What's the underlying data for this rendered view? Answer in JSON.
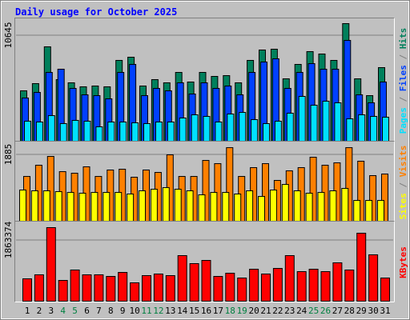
{
  "title": "Daily usage for October 2025",
  "categories": [
    "1",
    "2",
    "3",
    "4",
    "5",
    "6",
    "7",
    "8",
    "9",
    "10",
    "11",
    "12",
    "13",
    "14",
    "15",
    "16",
    "17",
    "18",
    "19",
    "20",
    "21",
    "22",
    "23",
    "24",
    "25",
    "26",
    "27",
    "28",
    "29",
    "30",
    "31"
  ],
  "weekends": [
    "4",
    "5",
    "11",
    "12",
    "18",
    "19",
    "25",
    "26"
  ],
  "weekend_color": "#008040",
  "label_color": "#000000",
  "legend_separator": " / ",
  "chart_data": [
    {
      "type": "bar",
      "ylim": [
        0,
        12096
      ],
      "yticks": [
        10645
      ],
      "grid": true,
      "series": [
        {
          "name": "Hits",
          "color": "#00805c",
          "values": [
            5080,
            5806,
            9516,
            6209,
            5887,
            5484,
            5564,
            5484,
            8145,
            8467,
            5564,
            6209,
            5887,
            6935,
            5967,
            6935,
            6532,
            6612,
            5887,
            8145,
            9193,
            9274,
            6290,
            7741,
            9032,
            8790,
            8145,
            11854,
            6290,
            4596,
            7419
          ]
        },
        {
          "name": "Files",
          "color": "#0040ff",
          "values": [
            4355,
            4919,
            6935,
            7258,
            5322,
            4677,
            4596,
            4274,
            6935,
            7741,
            4596,
            5322,
            5080,
            5887,
            4758,
            5887,
            5322,
            5564,
            4677,
            6935,
            7983,
            8306,
            5322,
            6935,
            7822,
            7258,
            7258,
            10161,
            4677,
            3871,
            5967
          ]
        },
        {
          "name": "Pages",
          "color": "#00e0ff",
          "values": [
            2016,
            1935,
            2580,
            1774,
            2097,
            2016,
            1452,
            1935,
            1935,
            1855,
            1774,
            1935,
            1935,
            2339,
            2661,
            2500,
            1935,
            2742,
            2903,
            2177,
            1774,
            2016,
            2822,
            4516,
            3629,
            4032,
            3871,
            2258,
            2661,
            2500,
            2419
          ]
        }
      ]
    },
    {
      "type": "bar",
      "ylim": [
        0,
        2180
      ],
      "yticks": [
        1885
      ],
      "grid": true,
      "series": [
        {
          "name": "Visits",
          "color": "#ff8000",
          "values": [
            1271,
            1589,
            1839,
            1407,
            1362,
            1544,
            1271,
            1453,
            1476,
            1249,
            1453,
            1385,
            1884,
            1271,
            1271,
            1725,
            1634,
            2088,
            1271,
            1521,
            1634,
            1158,
            1430,
            1521,
            1816,
            1589,
            1657,
            2088,
            1703,
            1294,
            1339
          ]
        },
        {
          "name": "Sites",
          "color": "#ffff00",
          "values": [
            885,
            863,
            863,
            840,
            817,
            795,
            817,
            817,
            817,
            772,
            863,
            908,
            953,
            908,
            863,
            749,
            817,
            817,
            772,
            863,
            704,
            885,
            1044,
            863,
            795,
            817,
            863,
            931,
            590,
            590,
            590
          ]
        }
      ]
    },
    {
      "type": "bar",
      "ylim": [
        0,
        2353736
      ],
      "yticks": [
        1863374
      ],
      "grid": true,
      "series": [
        {
          "name": "KBytes",
          "color": "#ff0000",
          "values": [
            686504,
            809094,
            2255656,
            637468,
            956202,
            809094,
            809094,
            760058,
            882648,
            563914,
            784576,
            833612,
            784576,
            1397526,
            1152346,
            1250418,
            760058,
            858130,
            711022,
            980720,
            833612,
            1005238,
            1397526,
            907166,
            980720,
            907166,
            1176864,
            956202,
            2084030,
            1422044,
            711022
          ]
        }
      ]
    }
  ]
}
